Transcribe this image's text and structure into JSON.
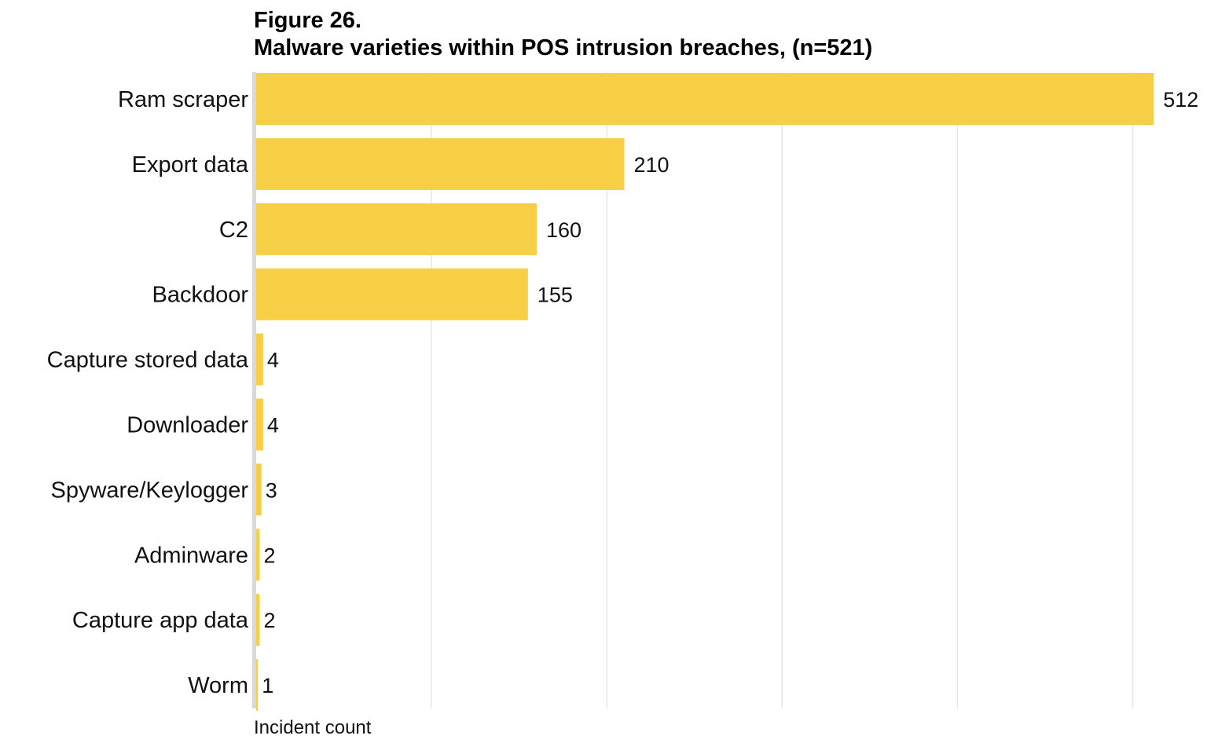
{
  "figure": {
    "number": "Figure 26.",
    "title": "Malware varieties within POS intrusion breaches, (n=521)"
  },
  "chart_data": {
    "type": "bar",
    "orientation": "horizontal",
    "title": "Malware varieties within POS intrusion breaches, (n=521)",
    "xlabel": "Incident count",
    "ylabel": "",
    "categories": [
      "Ram scraper",
      "Export data",
      "C2",
      "Backdoor",
      "Capture stored data",
      "Downloader",
      "Spyware/Keylogger",
      "Adminware",
      "Capture app data",
      "Worm"
    ],
    "values": [
      512,
      210,
      160,
      155,
      4,
      4,
      3,
      2,
      2,
      1
    ],
    "value_labels": [
      "512",
      "210",
      "160",
      "155",
      "4",
      "4",
      "3",
      "2",
      "2",
      "1"
    ],
    "xlim": [
      0,
      530
    ],
    "gridlines_at": [
      100,
      200,
      300,
      400,
      500
    ],
    "grid": true,
    "legend": "none",
    "bar_color": "#F7CF46",
    "grid_color": "#E6E6E6",
    "axis_color": "#D9D9D9"
  }
}
